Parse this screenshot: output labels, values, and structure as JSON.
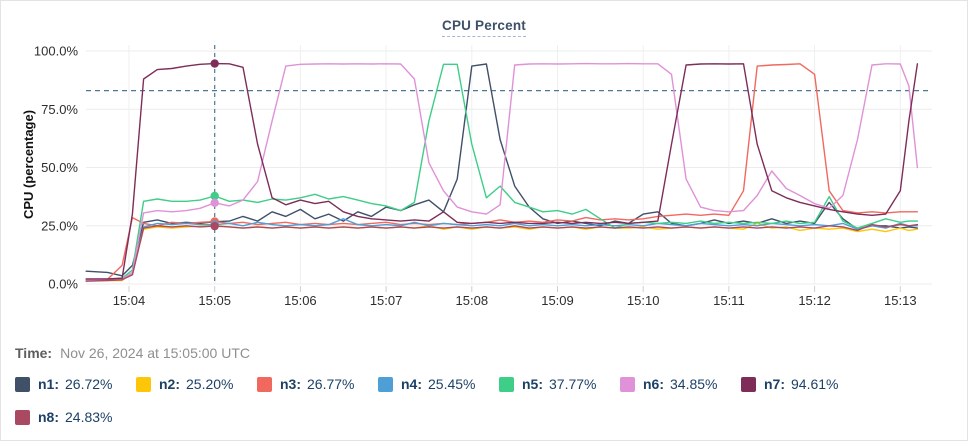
{
  "time": {
    "label": "Time:",
    "value": "Nov 26, 2024 at 15:05:00 UTC"
  },
  "chart_data": {
    "type": "line",
    "title": "CPU Percent",
    "ylabel": "CPU (percentage)",
    "ylim": [
      0,
      100
    ],
    "grid": true,
    "legend_position": "bottom",
    "yticks": [
      {
        "label": "0.0%",
        "value": 0
      },
      {
        "label": "25.0%",
        "value": 25
      },
      {
        "label": "50.0%",
        "value": 50
      },
      {
        "label": "75.0%",
        "value": 75
      },
      {
        "label": "100.0%",
        "value": 100
      }
    ],
    "xticks": [
      "15:04",
      "15:05",
      "15:06",
      "15:07",
      "15:08",
      "15:09",
      "15:10",
      "15:11",
      "15:12",
      "15:13"
    ],
    "threshold": {
      "value": 83,
      "color": "#4d7a92"
    },
    "crosshair": {
      "t_minute": 5.0,
      "color": "#4d7a92"
    },
    "x_minutes": [
      3.5,
      3.75,
      3.92,
      4.04,
      4.17,
      4.33,
      4.5,
      4.67,
      4.83,
      5.0,
      5.17,
      5.33,
      5.5,
      5.67,
      5.83,
      6.0,
      6.17,
      6.33,
      6.5,
      6.67,
      6.83,
      7.0,
      7.17,
      7.33,
      7.5,
      7.67,
      7.83,
      8.0,
      8.17,
      8.33,
      8.5,
      8.67,
      8.83,
      9.0,
      9.17,
      9.33,
      9.5,
      9.67,
      9.83,
      10.0,
      10.17,
      10.33,
      10.5,
      10.67,
      10.83,
      11.0,
      11.17,
      11.33,
      11.5,
      11.67,
      11.83,
      12.0,
      12.17,
      12.33,
      12.5,
      12.67,
      12.83,
      13.0,
      13.1,
      13.2
    ],
    "series": [
      {
        "name": "n1",
        "color": "#3f5068",
        "legend_value": "26.72%",
        "values": [
          5.5,
          5.0,
          3.5,
          8,
          26.5,
          27.5,
          26,
          26.5,
          26,
          26.72,
          27,
          29,
          27,
          31,
          29,
          32,
          28,
          30,
          27,
          31,
          29,
          33,
          31.5,
          34,
          36,
          31,
          45,
          93.5,
          94.4,
          62,
          42,
          33,
          28,
          26,
          27,
          26,
          25,
          27,
          26,
          30,
          31,
          26,
          25,
          26,
          27.5,
          26,
          27,
          26,
          28,
          26,
          27,
          26,
          35,
          28,
          23.5,
          25,
          25,
          24,
          24.5,
          24
        ]
      },
      {
        "name": "n2",
        "color": "#fdc608",
        "legend_value": "25.20%",
        "values": [
          1.5,
          1.5,
          1.5,
          5,
          23.5,
          24.5,
          24,
          24.5,
          24.8,
          25.2,
          24.5,
          24,
          24.5,
          24,
          24.5,
          24,
          24.5,
          24,
          24.5,
          24,
          24.5,
          24,
          24.5,
          24,
          25,
          23.5,
          24.5,
          23.5,
          24.5,
          24,
          24.5,
          23.5,
          24.5,
          24,
          24.5,
          23.5,
          24.5,
          24,
          24,
          24.5,
          23.5,
          24,
          24.5,
          24,
          24.5,
          24,
          23.5,
          26,
          24,
          24.5,
          23,
          24,
          23.5,
          24,
          22.5,
          23.5,
          22.5,
          24,
          23,
          23.5
        ]
      },
      {
        "name": "n3",
        "color": "#f1685f",
        "legend_value": "26.77%",
        "values": [
          2,
          2,
          8,
          28.5,
          26,
          25,
          26.5,
          26,
          26.5,
          26.77,
          26,
          26.5,
          25.5,
          26,
          26.5,
          25.5,
          26,
          25.5,
          26,
          25.5,
          26,
          26.5,
          25.5,
          26,
          25.5,
          26,
          25.5,
          26,
          26.5,
          27.5,
          26.5,
          27,
          26.5,
          27.5,
          27,
          28.5,
          27.5,
          28,
          27.5,
          28,
          29,
          29.5,
          30,
          29.5,
          30,
          29.5,
          40,
          93.5,
          94,
          94.2,
          94.5,
          90,
          40,
          31.5,
          30.5,
          31,
          30.5,
          31,
          31,
          31
        ]
      },
      {
        "name": "n4",
        "color": "#4f9fd7",
        "legend_value": "25.45%",
        "values": [
          1.8,
          2,
          2,
          4,
          24.5,
          26,
          25.5,
          26,
          25.5,
          25.45,
          26,
          25,
          26.5,
          25.5,
          25,
          25.5,
          25,
          25.5,
          28,
          25.5,
          25,
          25.5,
          25,
          26.5,
          25,
          26,
          25.5,
          25,
          25.5,
          25,
          26,
          25,
          25.5,
          25,
          25.5,
          25,
          25.5,
          25,
          25.5,
          25,
          26,
          25.5,
          25,
          26,
          25.5,
          25,
          25.5,
          25,
          26,
          25.5,
          25,
          25.5,
          25,
          26,
          23.5,
          25,
          24,
          26,
          25,
          25
        ]
      },
      {
        "name": "n5",
        "color": "#3ece87",
        "legend_value": "37.77%",
        "values": [
          2,
          2.2,
          2.5,
          6,
          35.5,
          36.5,
          35.5,
          35.5,
          36,
          37.77,
          35.5,
          36,
          35,
          36.5,
          36,
          37,
          38.5,
          36.5,
          37.5,
          36,
          34.5,
          33.5,
          31.5,
          35,
          70,
          94.3,
          94.3,
          60,
          37,
          42,
          35,
          33,
          31,
          31.5,
          30,
          32,
          28,
          24,
          26,
          26.5,
          26,
          26.5,
          26,
          27,
          26,
          26.5,
          26,
          26.5,
          26,
          27,
          26,
          26.5,
          37.5,
          27,
          24,
          26,
          28,
          26.5,
          27,
          27
        ]
      },
      {
        "name": "n6",
        "color": "#df92d7",
        "legend_value": "34.85%",
        "values": [
          1.5,
          1.8,
          2,
          5,
          30.5,
          31.5,
          31,
          31.5,
          32.5,
          34.85,
          33.5,
          36,
          44,
          70,
          93.5,
          94.3,
          94.4,
          94.5,
          94.4,
          94.5,
          94.4,
          94.5,
          94.4,
          88,
          52,
          40,
          33,
          31,
          30,
          34,
          94,
          94.4,
          94.5,
          94.4,
          94.5,
          94.6,
          94.5,
          94.5,
          94.6,
          94.5,
          94.5,
          90,
          45,
          33,
          31.5,
          31,
          31.5,
          38,
          48.5,
          41,
          38,
          34.5,
          32.5,
          38,
          62,
          94,
          94.5,
          94.4,
          85,
          50
        ]
      },
      {
        "name": "n7",
        "color": "#7e2d59",
        "legend_value": "94.61%",
        "values": [
          2.2,
          2.2,
          2.5,
          30,
          88,
          92,
          92.5,
          93.5,
          94.3,
          94.61,
          94.5,
          93,
          60,
          37,
          34,
          36,
          34.5,
          35.5,
          31,
          29,
          28,
          27.5,
          27,
          27.5,
          27,
          31,
          26.5,
          26,
          26.5,
          26,
          26.5,
          26,
          26,
          26.5,
          26,
          26.5,
          26,
          26.5,
          26,
          26.5,
          27,
          60,
          94,
          94.4,
          94.5,
          94.4,
          94.5,
          60,
          40,
          37,
          35,
          33.5,
          32,
          31,
          30,
          29.5,
          30,
          40,
          70,
          94.5
        ]
      },
      {
        "name": "n8",
        "color": "#aa4a62",
        "legend_value": "24.83%",
        "values": [
          1.2,
          1.5,
          1.8,
          4,
          24,
          25,
          24.5,
          25,
          24.5,
          24.83,
          24.5,
          24,
          24.5,
          24,
          24.5,
          24,
          24.5,
          24,
          24.5,
          24,
          24.5,
          24,
          24.5,
          24,
          24.5,
          24,
          24.5,
          24,
          24.5,
          24,
          25,
          24,
          24.5,
          24,
          24.5,
          24,
          24.5,
          24,
          24.5,
          24,
          24.5,
          24,
          24.5,
          24,
          24.5,
          24,
          24.5,
          24,
          24.5,
          24,
          24.5,
          24,
          25,
          24.5,
          23,
          25.5,
          24.5,
          25.5,
          25,
          25.5
        ]
      }
    ]
  }
}
